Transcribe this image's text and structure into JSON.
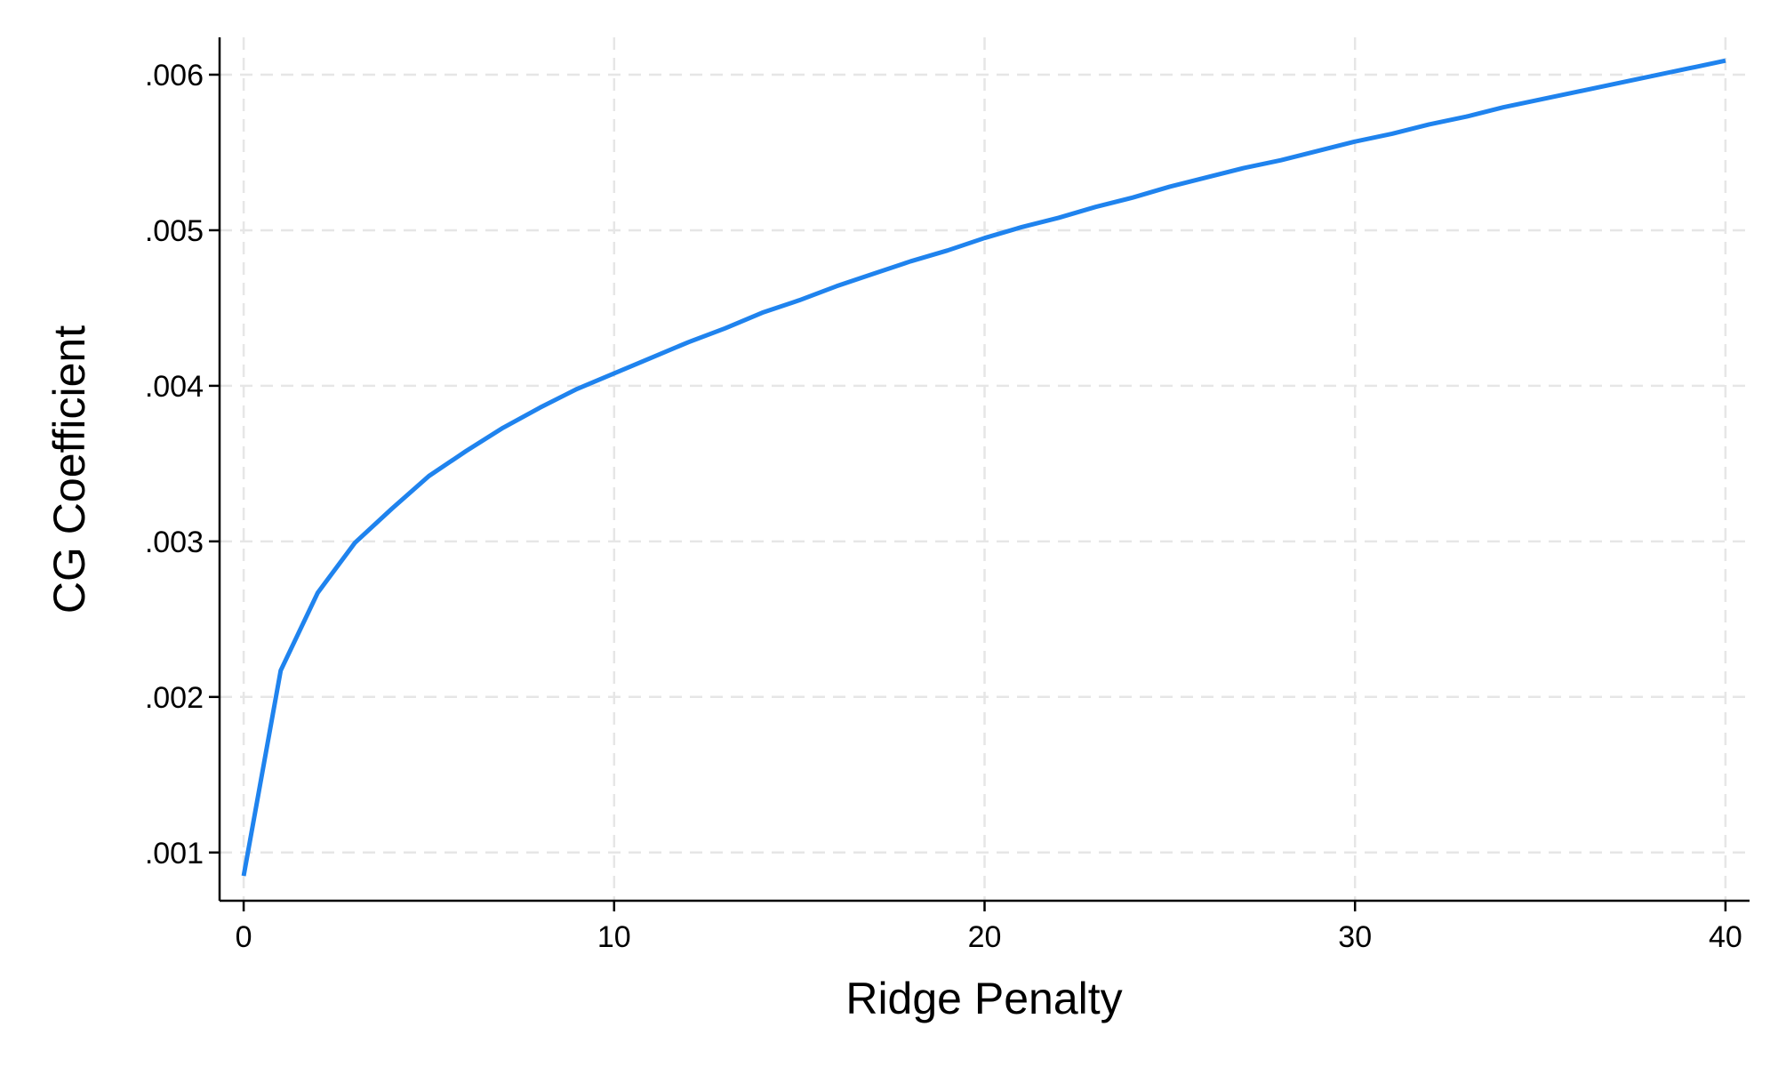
{
  "chart_data": {
    "type": "line",
    "xlabel": "Ridge Penalty",
    "ylabel": "CG Coefficient",
    "x": [
      0,
      1,
      2,
      3,
      4,
      5,
      6,
      7,
      8,
      9,
      10,
      11,
      12,
      13,
      14,
      15,
      16,
      17,
      18,
      19,
      20,
      21,
      22,
      23,
      24,
      25,
      26,
      27,
      28,
      29,
      30,
      31,
      32,
      33,
      34,
      35,
      36,
      37,
      38,
      39,
      40
    ],
    "values": [
      0.00085,
      0.00217,
      0.00267,
      0.00299,
      0.00321,
      0.00342,
      0.00358,
      0.00373,
      0.00386,
      0.00398,
      0.00408,
      0.00418,
      0.00428,
      0.00437,
      0.00447,
      0.00455,
      0.00464,
      0.00472,
      0.0048,
      0.00487,
      0.00495,
      0.00502,
      0.00508,
      0.00515,
      0.00521,
      0.00528,
      0.00534,
      0.0054,
      0.00545,
      0.00551,
      0.00557,
      0.00562,
      0.00568,
      0.00573,
      0.00579,
      0.00584,
      0.00589,
      0.00594,
      0.00599,
      0.00604,
      0.00609
    ],
    "color": "#1f83ee",
    "xlim": [
      -0.65,
      40.65
    ],
    "ylim": [
      0.00069,
      0.00624
    ],
    "xticks": [
      0,
      10,
      20,
      30,
      40
    ],
    "yticks": [
      {
        "value": 0.001,
        "label": ".001"
      },
      {
        "value": 0.002,
        "label": ".002"
      },
      {
        "value": 0.003,
        "label": ".003"
      },
      {
        "value": 0.004,
        "label": ".004"
      },
      {
        "value": 0.005,
        "label": ".005"
      },
      {
        "value": 0.006,
        "label": ".006"
      }
    ],
    "grid": true
  }
}
